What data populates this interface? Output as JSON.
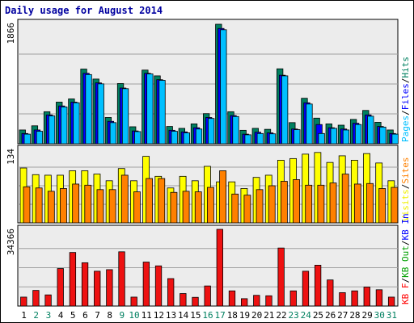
{
  "chart_data": {
    "type": "bar",
    "title": "Daily usage for August 2014",
    "categories": [
      "1",
      "2",
      "3",
      "4",
      "5",
      "6",
      "7",
      "8",
      "9",
      "10",
      "11",
      "12",
      "13",
      "14",
      "15",
      "16",
      "17",
      "18",
      "19",
      "20",
      "21",
      "22",
      "23",
      "24",
      "25",
      "26",
      "27",
      "28",
      "29",
      "30",
      "31"
    ],
    "weekend_days": [
      "2",
      "3",
      "9",
      "10",
      "16",
      "17",
      "23",
      "24",
      "30",
      "31"
    ],
    "panels": [
      {
        "id": "top",
        "scale_label": "1866",
        "ymax": 1866,
        "legend": [
          {
            "text": "Pages",
            "color": "#00c0ff"
          },
          {
            "text": "/",
            "color": "#000000"
          },
          {
            "text": "Files",
            "color": "#0000ff"
          },
          {
            "text": "/",
            "color": "#000000"
          },
          {
            "text": "Hits",
            "color": "#008060"
          }
        ],
        "series": [
          {
            "name": "Hits",
            "color": "#008060",
            "values": [
              215,
              280,
              500,
              650,
              700,
              1166,
              1010,
              410,
              940,
              265,
              1150,
              1060,
              270,
              240,
              310,
              470,
              1866,
              500,
              210,
              240,
              225,
              1170,
              330,
              710,
              400,
              310,
              290,
              380,
              520,
              335,
              215
            ]
          },
          {
            "name": "Files",
            "color": "#0000ff",
            "values": [
              160,
              215,
              450,
              590,
              650,
              1100,
              950,
              350,
              870,
              200,
              1100,
              1000,
              210,
              185,
              250,
              410,
              1800,
              440,
              150,
              180,
              170,
              1070,
              230,
              640,
              300,
              250,
              230,
              320,
              450,
              270,
              160
            ]
          },
          {
            "name": "Pages",
            "color": "#00c0ff",
            "values": [
              150,
              195,
              435,
              575,
              640,
              1080,
              935,
              330,
              860,
              190,
              1090,
              990,
              195,
              170,
              230,
              395,
              1780,
              425,
              140,
              160,
              155,
              1060,
              220,
              620,
              160,
              240,
              215,
              300,
              430,
              260,
              150
            ]
          }
        ]
      },
      {
        "id": "mid",
        "scale_label": "134",
        "ymax": 134,
        "legend": [
          {
            "text": "Visits",
            "color": "#f0f000"
          },
          {
            "text": "/",
            "color": "#000000"
          },
          {
            "text": "Sites",
            "color": "#ff8000"
          }
        ],
        "series": [
          {
            "name": "Visits",
            "color": "#ffff00",
            "values": [
              99,
              87,
              86,
              86,
              94,
              94,
              88,
              76,
              98,
              76,
              120,
              84,
              63,
              84,
              76,
              102,
              74,
              74,
              62,
              82,
              86,
              113,
              116,
              124,
              127,
              109,
              121,
              113,
              125,
              108,
              76
            ]
          },
          {
            "name": "Sites",
            "color": "#ff8000",
            "values": [
              65,
              63,
              57,
              62,
              70,
              68,
              60,
              60,
              86,
              56,
              80,
              80,
              55,
              57,
              56,
              64,
              94,
              52,
              50,
              60,
              67,
              75,
              78,
              68,
              68,
              72,
              88,
              70,
              71,
              62,
              64
            ]
          }
        ]
      },
      {
        "id": "bottom",
        "scale_label": "34366",
        "ymax": 34366,
        "legend": [
          {
            "text": "KB F",
            "color": "#ff0000"
          },
          {
            "text": "/",
            "color": "#000000"
          },
          {
            "text": "KB Out",
            "color": "#00a000"
          },
          {
            "text": "/",
            "color": "#000000"
          },
          {
            "text": "KB In",
            "color": "#0000ff"
          }
        ],
        "series": [
          {
            "name": "KB F",
            "color": "#ee1111",
            "values": [
              4000,
              7000,
              5000,
              16800,
              24000,
              19400,
              15600,
              16300,
              24300,
              4000,
              19700,
              18000,
              12300,
              5600,
              3900,
              9000,
              34366,
              6800,
              3300,
              4800,
              4600,
              26000,
              6800,
              15600,
              18300,
              11700,
              6000,
              6800,
              8500,
              7300,
              4000
            ]
          }
        ]
      }
    ]
  }
}
